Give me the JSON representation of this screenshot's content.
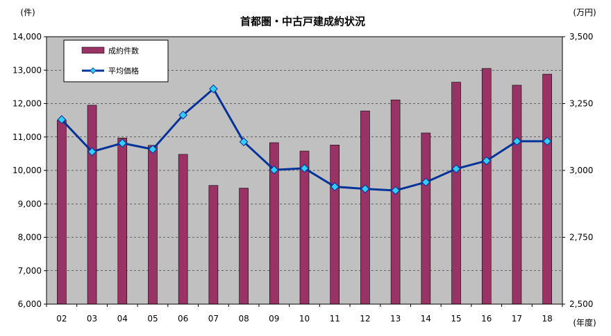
{
  "chart_data": {
    "type": "bar",
    "title": "首都圏・中古戸建成約状況",
    "y_left_unit": "(件)",
    "y_right_unit": "(万円)",
    "x_unit": "(年度)",
    "categories": [
      "02",
      "03",
      "04",
      "05",
      "06",
      "07",
      "08",
      "09",
      "10",
      "11",
      "12",
      "13",
      "14",
      "15",
      "16",
      "17",
      "18"
    ],
    "ylim_left": [
      6000,
      14000
    ],
    "ylim_right": [
      2500,
      3500
    ],
    "yticks_left": [
      "6,000",
      "7,000",
      "8,000",
      "9,000",
      "10,000",
      "11,000",
      "12,000",
      "13,000",
      "14,000"
    ],
    "yticks_right": [
      "2,500",
      "2,750",
      "3,000",
      "3,250",
      "3,500"
    ],
    "grid": true,
    "legend_position": "top-left",
    "series": [
      {
        "name": "成約件数",
        "type": "bar",
        "axis": "left",
        "color": "#993366",
        "values": [
          11500,
          11950,
          10970,
          10750,
          10480,
          9550,
          9470,
          10830,
          10580,
          10760,
          11780,
          12110,
          11120,
          12640,
          13050,
          12550,
          12880
        ]
      },
      {
        "name": "平均価格",
        "type": "line",
        "axis": "right",
        "color": "#003399",
        "marker_color": "#33ccff",
        "values": [
          3190,
          3070,
          3102,
          3079,
          3207,
          3305,
          3107,
          3002,
          3008,
          2939,
          2931,
          2925,
          2956,
          3006,
          3036,
          3109,
          3109
        ]
      }
    ]
  }
}
